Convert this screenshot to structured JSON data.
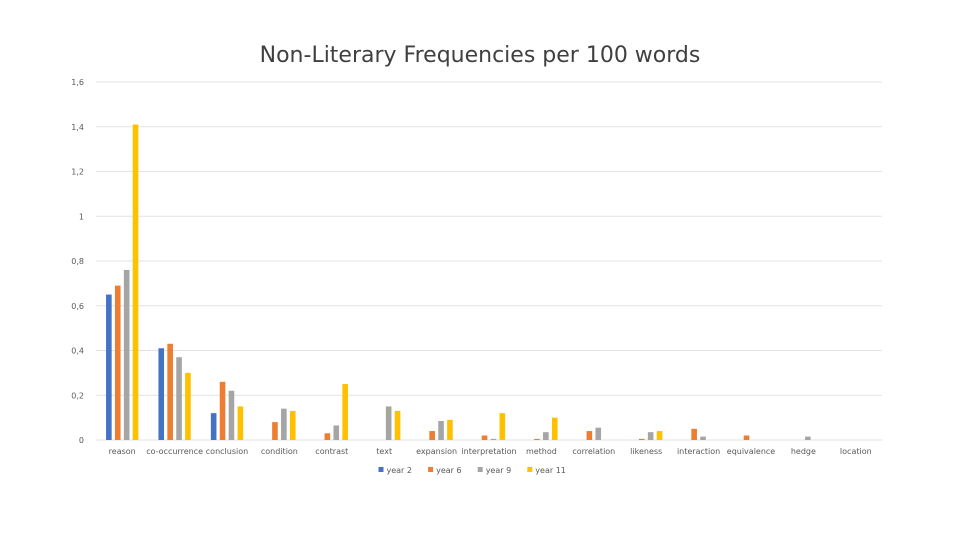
{
  "chart_data": {
    "type": "bar",
    "title": "Non-Literary Frequencies per 100 words",
    "xlabel": "",
    "ylabel": "",
    "ylim": [
      0,
      1.6
    ],
    "ytick_values": [
      0,
      0.2,
      0.4,
      0.6,
      0.8,
      1,
      1.2,
      1.4,
      1.6
    ],
    "ytick_labels": [
      "0",
      "0,2",
      "0,4",
      "0,6",
      "0,8",
      "1",
      "1,2",
      "1,4",
      "1,6"
    ],
    "grid": true,
    "legend_position": "bottom",
    "categories": [
      "reason",
      "co-occurrence",
      "conclusion",
      "condition",
      "contrast",
      "text",
      "expansion",
      "interpretation",
      "method",
      "correlation",
      "likeness",
      "interaction",
      "equivalence",
      "hedge",
      "location"
    ],
    "series": [
      {
        "name": "year 2",
        "color": "#4472C4",
        "values": [
          0.65,
          0.41,
          0.12,
          0,
          0,
          0,
          0,
          0,
          0,
          0,
          0,
          0,
          0,
          0,
          0
        ]
      },
      {
        "name": "year 6",
        "color": "#ED7D31",
        "values": [
          0.69,
          0.43,
          0.26,
          0.08,
          0.03,
          0,
          0.04,
          0.02,
          0.005,
          0.04,
          0.005,
          0.05,
          0.02,
          0,
          0
        ]
      },
      {
        "name": "year 9",
        "color": "#A5A5A5",
        "values": [
          0.76,
          0.37,
          0.22,
          0.14,
          0.065,
          0.15,
          0.085,
          0.005,
          0.035,
          0.055,
          0.035,
          0.015,
          0,
          0.015,
          0
        ]
      },
      {
        "name": "year 11",
        "color": "#FFC000",
        "values": [
          1.41,
          0.3,
          0.15,
          0.13,
          0.25,
          0.13,
          0.09,
          0.12,
          0.1,
          0,
          0.04,
          0,
          0,
          0,
          0
        ]
      }
    ]
  }
}
